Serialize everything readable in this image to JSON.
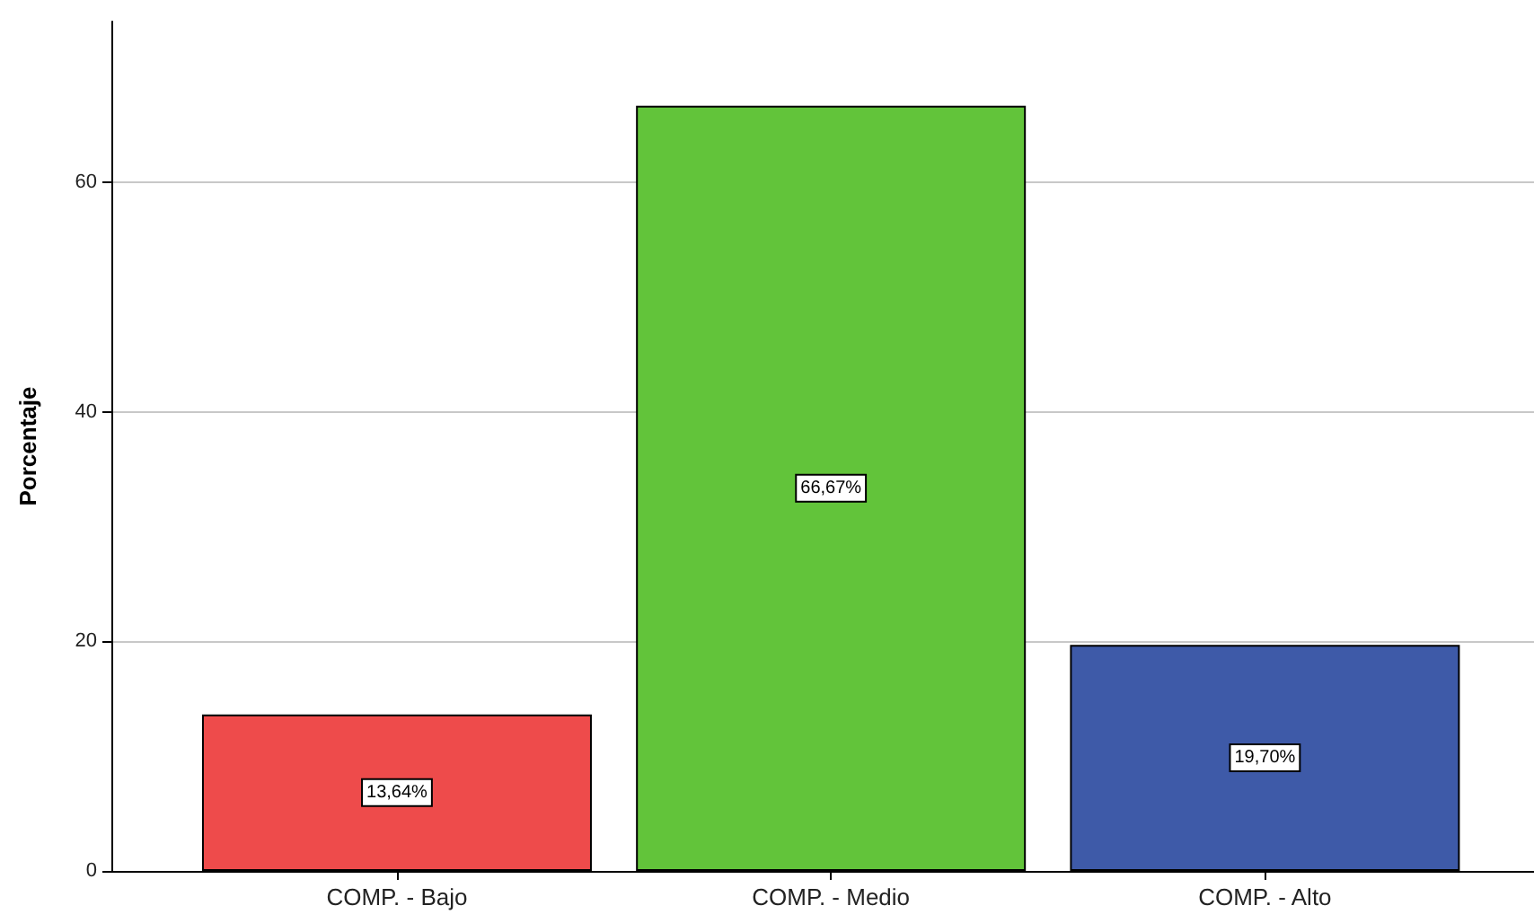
{
  "chart_data": {
    "type": "bar",
    "ylabel": "Porcentaje",
    "categories": [
      "COMP. - Bajo",
      "COMP. - Medio",
      "COMP. - Alto"
    ],
    "values": [
      13.64,
      66.67,
      19.7
    ],
    "colors": [
      "#ee4b4b",
      "#62c43a",
      "#3e5aa8"
    ],
    "value_labels": [
      "13,64%",
      "66,67%",
      "19,70%"
    ],
    "ylim": [
      0,
      74
    ],
    "yticks": [
      0,
      20,
      40,
      60
    ],
    "grid": "y"
  }
}
